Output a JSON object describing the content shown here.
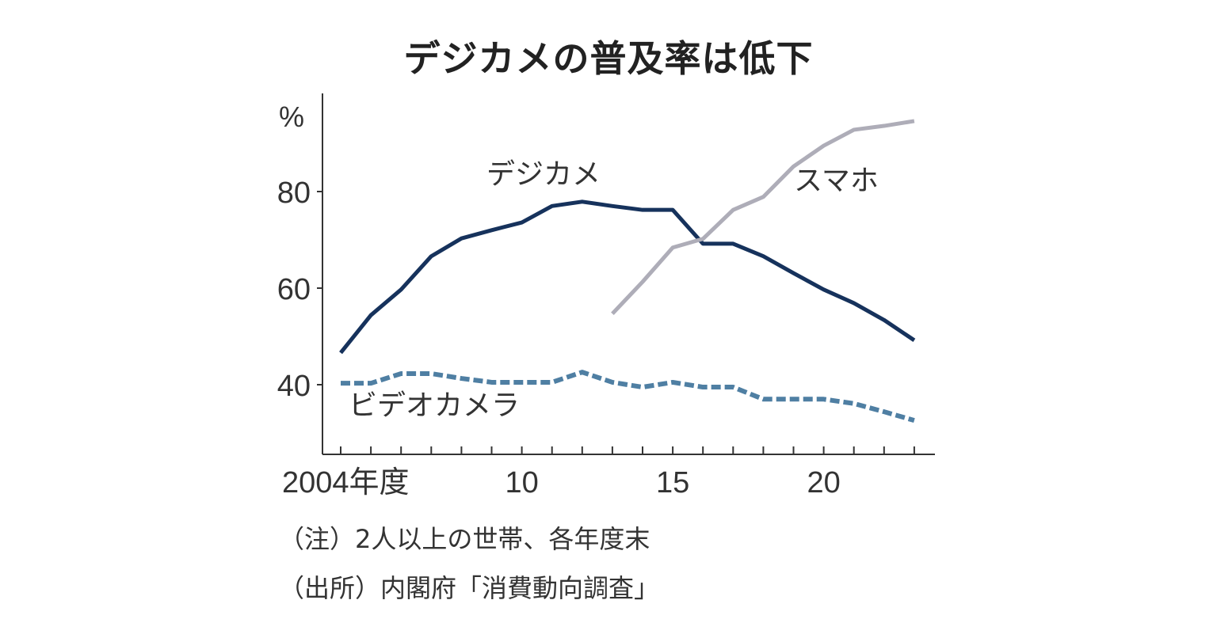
{
  "chart_data": {
    "type": "line",
    "title": "デジカメの普及率は低下",
    "ylabel": "%",
    "xlabel": "",
    "x": [
      2004,
      2005,
      2006,
      2007,
      2008,
      2009,
      2010,
      2011,
      2012,
      2013,
      2014,
      2015,
      2016,
      2017,
      2018,
      2019,
      2020,
      2021,
      2022,
      2023
    ],
    "xticks": [
      {
        "value": 2004,
        "label": "2004年度"
      },
      {
        "value": 2010,
        "label": "10"
      },
      {
        "value": 2015,
        "label": "15"
      },
      {
        "value": 2020,
        "label": "20"
      }
    ],
    "yticks": [
      {
        "value": 40,
        "label": "40"
      },
      {
        "value": 60,
        "label": "60"
      },
      {
        "value": 80,
        "label": "80"
      }
    ],
    "ylim": [
      25.6,
      100
    ],
    "grid": false,
    "series": [
      {
        "name": "デジカメ",
        "color": "#16325c",
        "style": "solid",
        "values": [
          46.6,
          54.4,
          59.7,
          66.6,
          70.3,
          72.0,
          73.6,
          77.0,
          77.9,
          77.0,
          76.2,
          76.2,
          69.2,
          69.2,
          66.6,
          63.1,
          59.7,
          56.9,
          53.4,
          49.2
        ]
      },
      {
        "name": "スマホ",
        "color": "#aeadb8",
        "style": "solid",
        "values": [
          null,
          null,
          null,
          null,
          null,
          null,
          null,
          null,
          null,
          54.7,
          61.3,
          68.4,
          70.2,
          76.2,
          78.9,
          85.2,
          89.5,
          92.8,
          93.6,
          94.6
        ]
      },
      {
        "name": "ビデオカメラ",
        "color": "#4f7fa3",
        "style": "dashed",
        "values": [
          40.3,
          40.3,
          42.3,
          42.3,
          41.3,
          40.5,
          40.5,
          40.5,
          42.6,
          40.5,
          39.5,
          40.5,
          39.5,
          39.5,
          37.0,
          37.0,
          37.0,
          36.1,
          34.4,
          32.6
        ]
      }
    ],
    "notes": [
      "（注）2人以上の世帯、各年度末",
      "（出所）内閣府「消費動向調査」"
    ]
  }
}
